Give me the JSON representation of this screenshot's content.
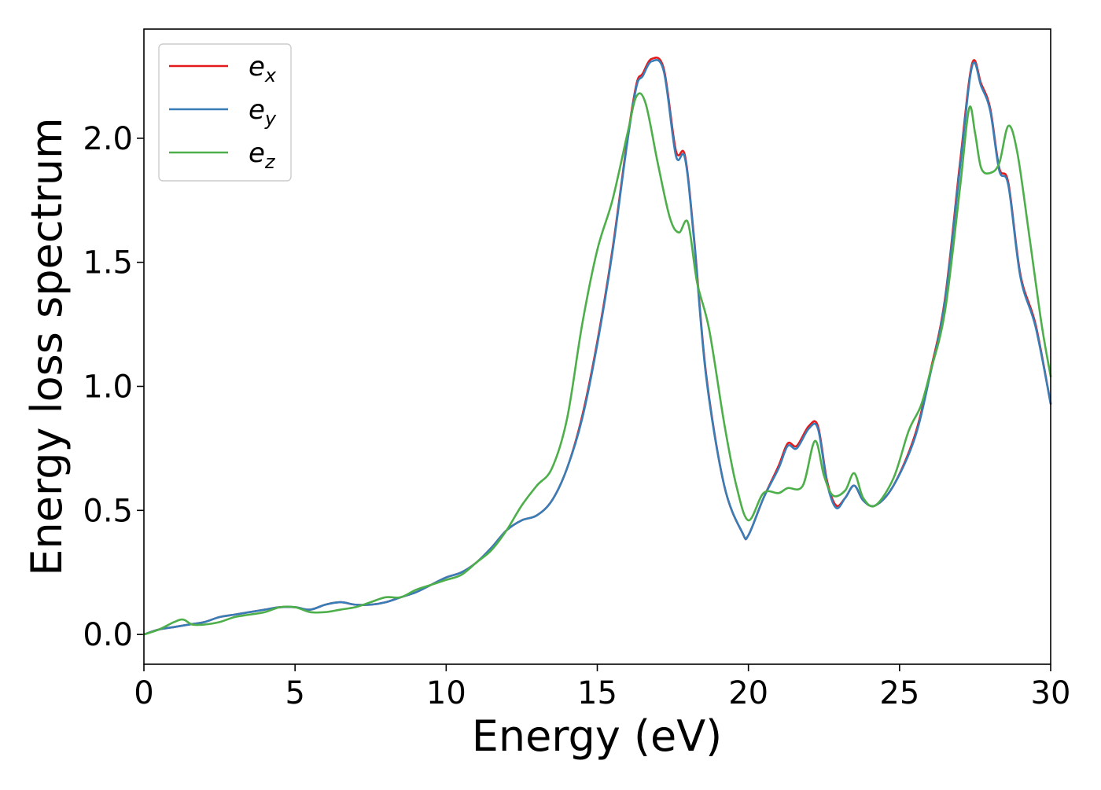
{
  "chart_data": {
    "type": "line",
    "title": "",
    "xlabel": "Energy (eV)",
    "ylabel": "Energy loss spectrum",
    "xlim": [
      0,
      30
    ],
    "ylim": [
      -0.12,
      2.44
    ],
    "xticks": [
      0,
      5,
      10,
      15,
      20,
      25,
      30
    ],
    "xtick_labels": [
      "0",
      "5",
      "10",
      "15",
      "20",
      "25",
      "30"
    ],
    "yticks": [
      0.0,
      0.5,
      1.0,
      1.5,
      2.0
    ],
    "ytick_labels": [
      "0.0",
      "0.5",
      "1.0",
      "1.5",
      "2.0"
    ],
    "grid": false,
    "legend_position": "top-left",
    "series": [
      {
        "name": "e_x",
        "legend_base": "e",
        "legend_sub": "x",
        "color": "#e41a1c",
        "points": [
          [
            0,
            0
          ],
          [
            0.5,
            0.02
          ],
          [
            1,
            0.03
          ],
          [
            1.5,
            0.04
          ],
          [
            2,
            0.05
          ],
          [
            2.5,
            0.07
          ],
          [
            3,
            0.08
          ],
          [
            3.5,
            0.09
          ],
          [
            4,
            0.1
          ],
          [
            4.5,
            0.11
          ],
          [
            5,
            0.11
          ],
          [
            5.5,
            0.1
          ],
          [
            6,
            0.12
          ],
          [
            6.5,
            0.13
          ],
          [
            7,
            0.12
          ],
          [
            7.5,
            0.12
          ],
          [
            8,
            0.13
          ],
          [
            8.5,
            0.15
          ],
          [
            9,
            0.17
          ],
          [
            9.5,
            0.2
          ],
          [
            10,
            0.23
          ],
          [
            10.5,
            0.25
          ],
          [
            11,
            0.29
          ],
          [
            11.5,
            0.35
          ],
          [
            12,
            0.42
          ],
          [
            12.5,
            0.46
          ],
          [
            13,
            0.48
          ],
          [
            13.5,
            0.54
          ],
          [
            14,
            0.67
          ],
          [
            14.5,
            0.88
          ],
          [
            15,
            1.18
          ],
          [
            15.5,
            1.55
          ],
          [
            16,
            2.0
          ],
          [
            16.3,
            2.22
          ],
          [
            16.5,
            2.26
          ],
          [
            16.8,
            2.32
          ],
          [
            17.2,
            2.28
          ],
          [
            17.6,
            1.95
          ],
          [
            17.9,
            1.93
          ],
          [
            18.2,
            1.6
          ],
          [
            18.6,
            1.05
          ],
          [
            19.2,
            0.6
          ],
          [
            19.8,
            0.41
          ],
          [
            20,
            0.4
          ],
          [
            20.5,
            0.55
          ],
          [
            21,
            0.68
          ],
          [
            21.3,
            0.77
          ],
          [
            21.6,
            0.76
          ],
          [
            22,
            0.84
          ],
          [
            22.3,
            0.84
          ],
          [
            22.6,
            0.62
          ],
          [
            22.9,
            0.52
          ],
          [
            23.2,
            0.55
          ],
          [
            23.5,
            0.6
          ],
          [
            23.8,
            0.54
          ],
          [
            24.2,
            0.52
          ],
          [
            24.8,
            0.6
          ],
          [
            25.5,
            0.8
          ],
          [
            26,
            1.05
          ],
          [
            26.5,
            1.35
          ],
          [
            27,
            1.9
          ],
          [
            27.4,
            2.3
          ],
          [
            27.7,
            2.22
          ],
          [
            28,
            2.12
          ],
          [
            28.3,
            1.88
          ],
          [
            28.6,
            1.82
          ],
          [
            29,
            1.45
          ],
          [
            29.5,
            1.25
          ],
          [
            30,
            0.93
          ]
        ]
      },
      {
        "name": "e_y",
        "legend_base": "e",
        "legend_sub": "y",
        "color": "#377eb8",
        "points": [
          [
            0,
            0
          ],
          [
            0.5,
            0.02
          ],
          [
            1,
            0.03
          ],
          [
            1.5,
            0.04
          ],
          [
            2,
            0.05
          ],
          [
            2.5,
            0.07
          ],
          [
            3,
            0.08
          ],
          [
            3.5,
            0.09
          ],
          [
            4,
            0.1
          ],
          [
            4.5,
            0.11
          ],
          [
            5,
            0.11
          ],
          [
            5.5,
            0.1
          ],
          [
            6,
            0.12
          ],
          [
            6.5,
            0.13
          ],
          [
            7,
            0.12
          ],
          [
            7.5,
            0.12
          ],
          [
            8,
            0.13
          ],
          [
            8.5,
            0.15
          ],
          [
            9,
            0.17
          ],
          [
            9.5,
            0.2
          ],
          [
            10,
            0.23
          ],
          [
            10.5,
            0.25
          ],
          [
            11,
            0.29
          ],
          [
            11.5,
            0.35
          ],
          [
            12,
            0.42
          ],
          [
            12.5,
            0.46
          ],
          [
            13,
            0.48
          ],
          [
            13.5,
            0.54
          ],
          [
            14,
            0.67
          ],
          [
            14.5,
            0.87
          ],
          [
            15,
            1.17
          ],
          [
            15.5,
            1.54
          ],
          [
            16,
            1.99
          ],
          [
            16.3,
            2.21
          ],
          [
            16.5,
            2.25
          ],
          [
            16.8,
            2.31
          ],
          [
            17.2,
            2.27
          ],
          [
            17.6,
            1.93
          ],
          [
            17.9,
            1.92
          ],
          [
            18.2,
            1.59
          ],
          [
            18.6,
            1.04
          ],
          [
            19.2,
            0.6
          ],
          [
            19.8,
            0.41
          ],
          [
            20,
            0.4
          ],
          [
            20.5,
            0.55
          ],
          [
            21,
            0.67
          ],
          [
            21.3,
            0.76
          ],
          [
            21.6,
            0.75
          ],
          [
            22,
            0.83
          ],
          [
            22.3,
            0.83
          ],
          [
            22.6,
            0.61
          ],
          [
            22.9,
            0.51
          ],
          [
            23.2,
            0.55
          ],
          [
            23.5,
            0.6
          ],
          [
            23.8,
            0.54
          ],
          [
            24.2,
            0.52
          ],
          [
            24.8,
            0.6
          ],
          [
            25.5,
            0.79
          ],
          [
            26,
            1.04
          ],
          [
            26.5,
            1.34
          ],
          [
            27,
            1.88
          ],
          [
            27.4,
            2.29
          ],
          [
            27.7,
            2.21
          ],
          [
            28,
            2.11
          ],
          [
            28.3,
            1.87
          ],
          [
            28.6,
            1.81
          ],
          [
            29,
            1.44
          ],
          [
            29.5,
            1.24
          ],
          [
            30,
            0.93
          ]
        ]
      },
      {
        "name": "e_z",
        "legend_base": "e",
        "legend_sub": "z",
        "color": "#4daf4a",
        "points": [
          [
            0,
            0
          ],
          [
            0.5,
            0.02
          ],
          [
            1,
            0.05
          ],
          [
            1.3,
            0.06
          ],
          [
            1.6,
            0.04
          ],
          [
            2,
            0.04
          ],
          [
            2.5,
            0.05
          ],
          [
            3,
            0.07
          ],
          [
            3.5,
            0.08
          ],
          [
            4,
            0.09
          ],
          [
            4.5,
            0.11
          ],
          [
            5,
            0.11
          ],
          [
            5.5,
            0.09
          ],
          [
            6,
            0.09
          ],
          [
            6.5,
            0.1
          ],
          [
            7,
            0.11
          ],
          [
            7.5,
            0.13
          ],
          [
            8,
            0.15
          ],
          [
            8.5,
            0.15
          ],
          [
            9,
            0.18
          ],
          [
            9.5,
            0.2
          ],
          [
            10,
            0.22
          ],
          [
            10.5,
            0.24
          ],
          [
            11,
            0.29
          ],
          [
            11.5,
            0.34
          ],
          [
            12,
            0.42
          ],
          [
            12.5,
            0.52
          ],
          [
            13,
            0.6
          ],
          [
            13.5,
            0.67
          ],
          [
            14,
            0.87
          ],
          [
            14.5,
            1.25
          ],
          [
            15,
            1.55
          ],
          [
            15.5,
            1.75
          ],
          [
            16,
            2.02
          ],
          [
            16.3,
            2.17
          ],
          [
            16.6,
            2.14
          ],
          [
            17,
            1.9
          ],
          [
            17.4,
            1.68
          ],
          [
            17.7,
            1.62
          ],
          [
            18,
            1.66
          ],
          [
            18.3,
            1.42
          ],
          [
            18.7,
            1.23
          ],
          [
            19.2,
            0.85
          ],
          [
            19.6,
            0.6
          ],
          [
            20,
            0.46
          ],
          [
            20.5,
            0.57
          ],
          [
            21,
            0.57
          ],
          [
            21.3,
            0.59
          ],
          [
            21.8,
            0.6
          ],
          [
            22.2,
            0.78
          ],
          [
            22.5,
            0.64
          ],
          [
            22.8,
            0.56
          ],
          [
            23.2,
            0.58
          ],
          [
            23.5,
            0.65
          ],
          [
            23.8,
            0.55
          ],
          [
            24.2,
            0.52
          ],
          [
            24.8,
            0.63
          ],
          [
            25.3,
            0.82
          ],
          [
            25.7,
            0.92
          ],
          [
            26,
            1.05
          ],
          [
            26.5,
            1.3
          ],
          [
            27,
            1.8
          ],
          [
            27.3,
            2.12
          ],
          [
            27.5,
            2.02
          ],
          [
            27.7,
            1.88
          ],
          [
            28,
            1.86
          ],
          [
            28.3,
            1.9
          ],
          [
            28.6,
            2.05
          ],
          [
            28.9,
            1.94
          ],
          [
            29.3,
            1.6
          ],
          [
            29.7,
            1.25
          ],
          [
            30,
            1.04
          ]
        ]
      }
    ]
  }
}
